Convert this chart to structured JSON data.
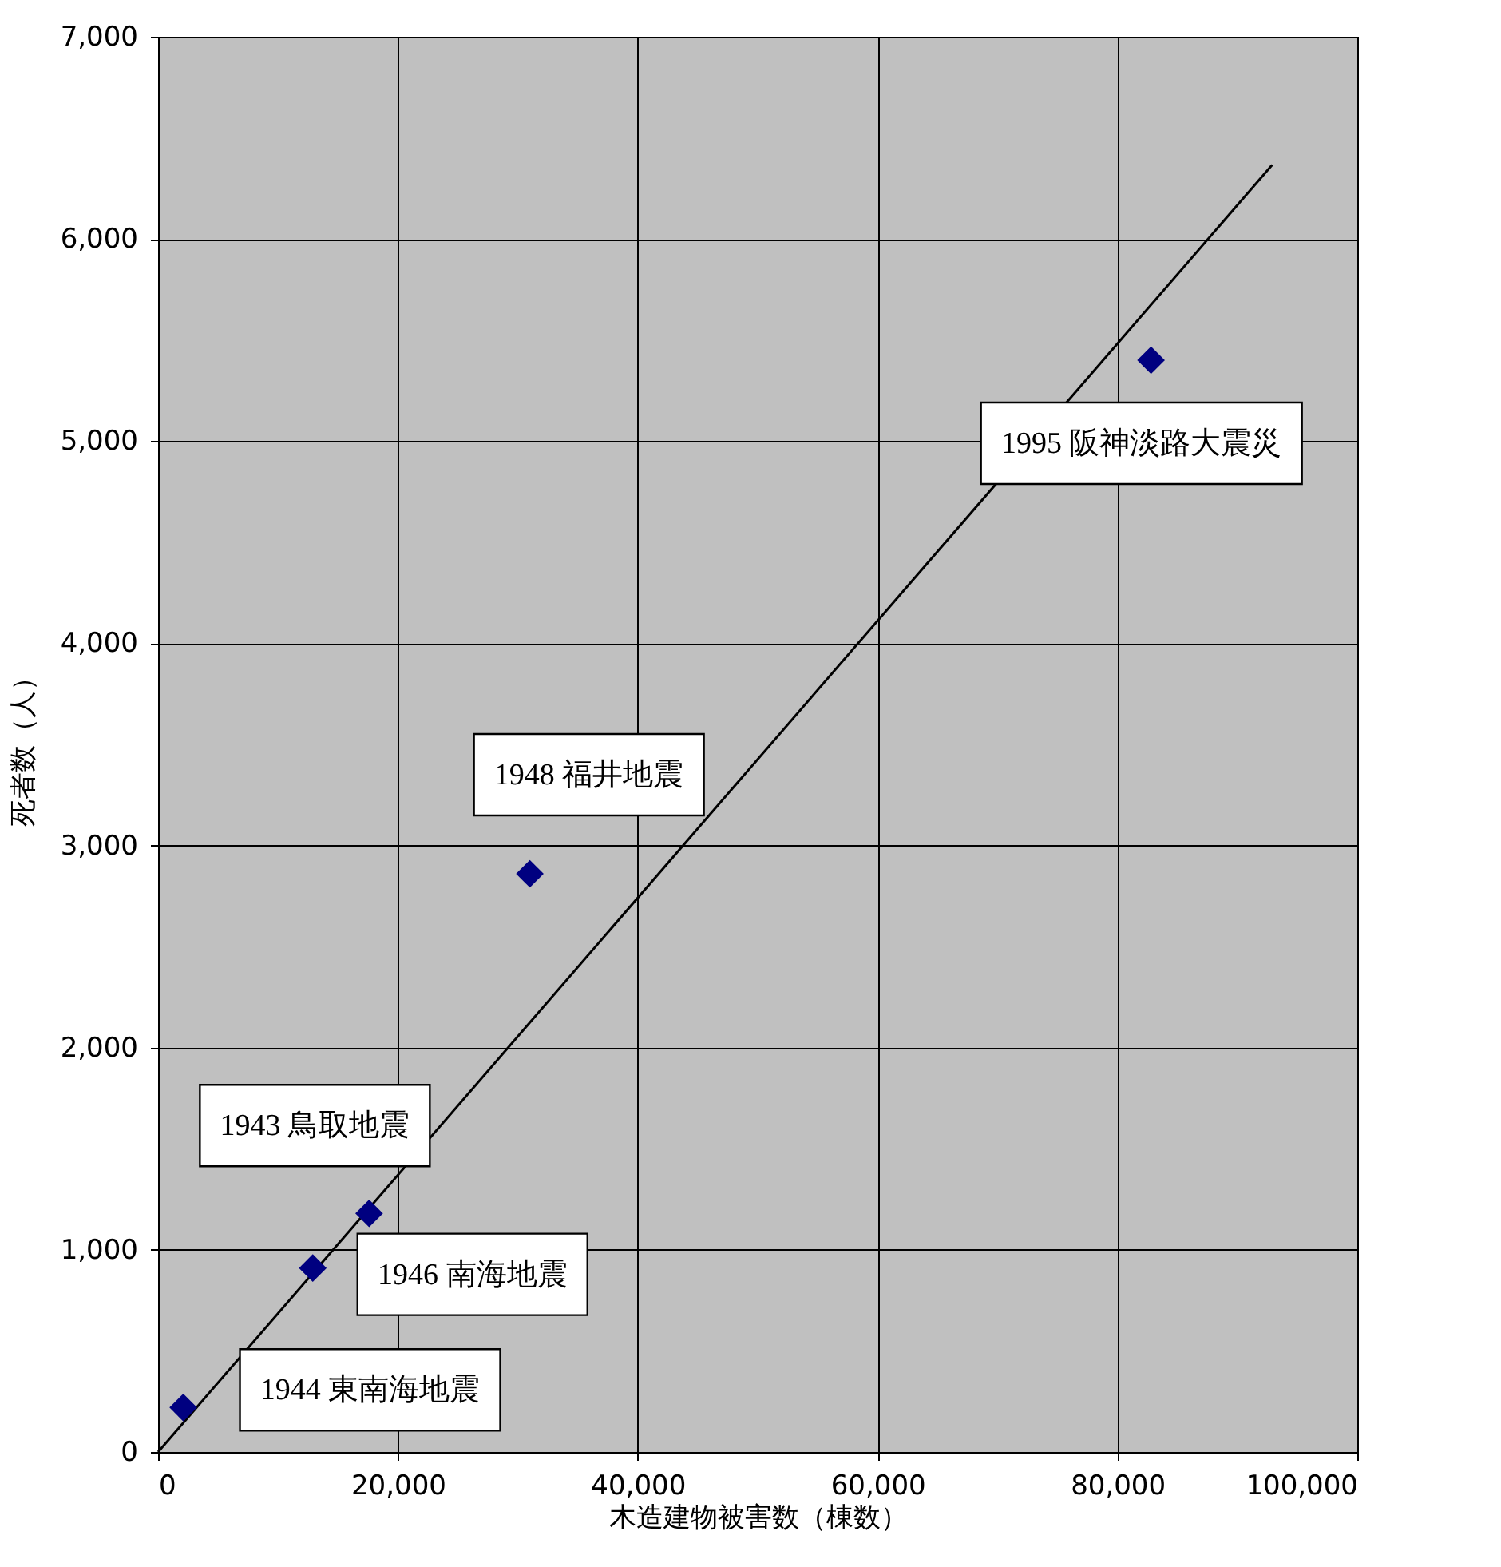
{
  "chart_data": {
    "type": "scatter",
    "xlabel": "木造建物被害数（棟数）",
    "ylabel": "死者数（人）",
    "xlim": [
      0,
      100000
    ],
    "xticks": [
      0,
      {
        "value": 20000,
        "label": "20,000"
      },
      {
        "value": 40000,
        "label": "40,000"
      },
      {
        "value": 60000,
        "label": "60,000"
      },
      {
        "value": 80000,
        "label": "80,000"
      },
      {
        "value": 100000,
        "label": "100,000"
      }
    ],
    "ylim": [
      0,
      7000
    ],
    "yticks": [
      0,
      {
        "value": 1000,
        "label": "1,000"
      },
      {
        "value": 2000,
        "label": "2,000"
      },
      {
        "value": 3000,
        "label": "3,000"
      },
      {
        "value": 4000,
        "label": "4,000"
      },
      {
        "value": 5000,
        "label": "5,000"
      },
      {
        "value": 6000,
        "label": "6,000"
      },
      {
        "value": 7000,
        "label": "7,000"
      }
    ],
    "grid": true,
    "marker": "diamond",
    "series": [
      {
        "color": "#000080",
        "x": [
          2100,
          12900,
          17600,
          31000,
          82800
        ],
        "values": [
          220,
          910,
          1180,
          2860,
          5400
        ]
      },
      {
        "type": "line",
        "color": "#000000",
        "marker": "none",
        "line_style": "solid",
        "x": [
          0,
          92900
        ],
        "values": [
          0,
          6366
        ]
      }
    ],
    "annotations": [
      {
        "text": "1944 東南海地震",
        "x": 2100,
        "y": 220
      },
      {
        "text": "1946 南海地震",
        "x": 12900,
        "y": 910
      },
      {
        "text": "1943 鳥取地震",
        "x": 17600,
        "y": 1180
      },
      {
        "text": "1948 福井地震",
        "x": 31000,
        "y": 2860
      },
      {
        "text": "1995 阪神淡路大震災",
        "x": 82800,
        "y": 5400
      }
    ]
  }
}
